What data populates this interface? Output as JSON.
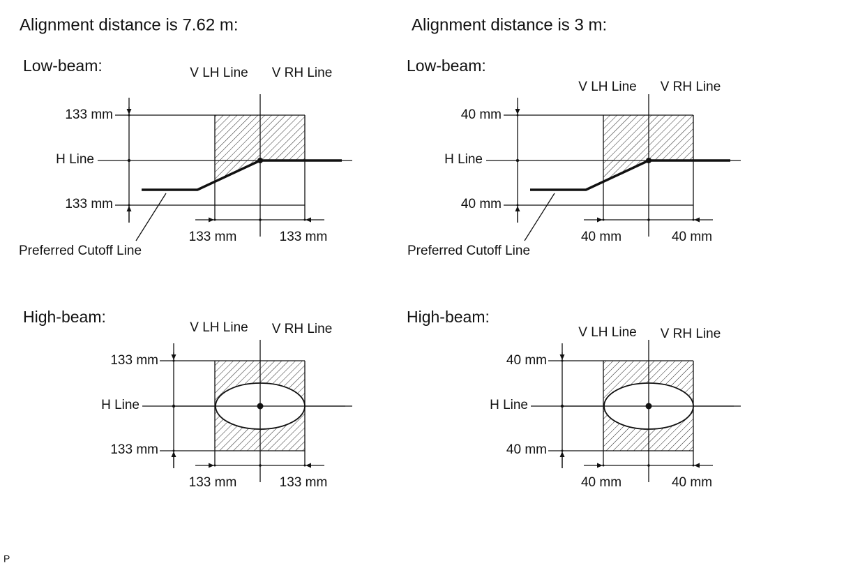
{
  "panels": [
    {
      "title": "Alignment distance is 7.62 m:",
      "low_beam": {
        "heading": "Low-beam:",
        "v_lh_line": "V LH Line",
        "v_rh_line": "V RH Line",
        "top_offset": "133 mm",
        "h_line": "H Line",
        "bottom_offset": "133 mm",
        "left_offset": "133 mm",
        "right_offset": "133 mm",
        "cutoff_line": "Preferred Cutoff Line"
      },
      "high_beam": {
        "heading": "High-beam:",
        "v_lh_line": "V LH Line",
        "v_rh_line": "V RH Line",
        "top_offset": "133 mm",
        "h_line": "H Line",
        "bottom_offset": "133 mm",
        "left_offset": "133 mm",
        "right_offset": "133 mm"
      }
    },
    {
      "title": "Alignment distance is 3 m:",
      "low_beam": {
        "heading": "Low-beam:",
        "v_lh_line": "V LH Line",
        "v_rh_line": "V RH Line",
        "top_offset": "40 mm",
        "h_line": "H Line",
        "bottom_offset": "40 mm",
        "left_offset": "40 mm",
        "right_offset": "40 mm",
        "cutoff_line": "Preferred Cutoff Line"
      },
      "high_beam": {
        "heading": "High-beam:",
        "v_lh_line": "V LH Line",
        "v_rh_line": "V RH Line",
        "top_offset": "40 mm",
        "h_line": "H Line",
        "bottom_offset": "40 mm",
        "left_offset": "40 mm",
        "right_offset": "40 mm"
      }
    }
  ],
  "footer": "P"
}
